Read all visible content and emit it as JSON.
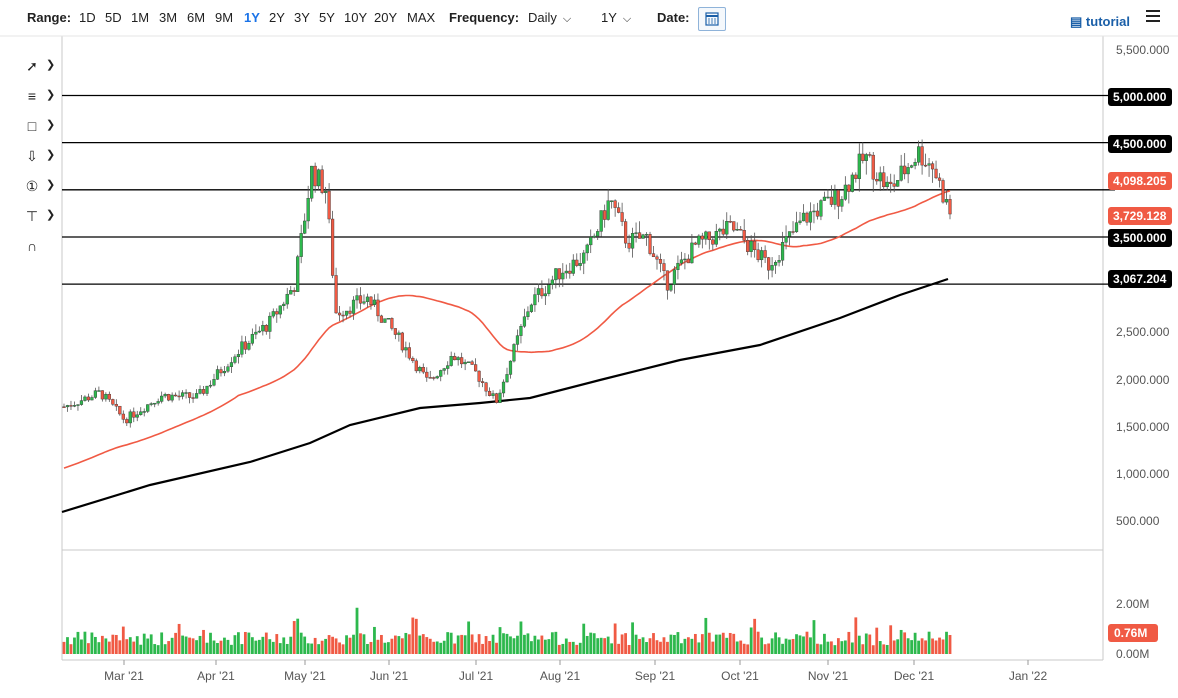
{
  "toolbar": {
    "range_label": "Range:",
    "ranges": [
      "1D",
      "5D",
      "1M",
      "3M",
      "6M",
      "9M",
      "1Y",
      "2Y",
      "3Y",
      "5Y",
      "10Y",
      "20Y",
      "MAX"
    ],
    "active_range": "1Y",
    "frequency_label": "Frequency:",
    "frequency_value": "Daily",
    "period_value": "1Y",
    "date_label": "Date:",
    "tutorial_label": "tutorial"
  },
  "drawing_tools": [
    {
      "icon": "trendline-icon"
    },
    {
      "icon": "fibonacci-icon"
    },
    {
      "icon": "rectangle-icon"
    },
    {
      "icon": "arrow-down-icon"
    },
    {
      "icon": "number-one-icon"
    },
    {
      "icon": "measure-icon"
    },
    {
      "icon": "magnet-icon"
    }
  ],
  "chart_data": {
    "type": "candlestick",
    "title": "",
    "x_tick_labels": [
      "Mar '21",
      "Apr '21",
      "May '21",
      "Jun '21",
      "Jul '21",
      "Aug '21",
      "Sep '21",
      "Oct '21",
      "Nov '21",
      "Dec '21",
      "Jan '22"
    ],
    "y_tick_labels": [
      "5,500.000",
      "5,000.000",
      "4,500.000",
      "2,500.000",
      "2,000.000",
      "1,500.000",
      "1,000.000",
      "500.000"
    ],
    "ylim": [
      0,
      5500
    ],
    "grid": false,
    "horizontal_levels": [
      5000,
      4500,
      4000,
      3500,
      3000
    ],
    "price_labels": [
      {
        "text": "5,000.000",
        "color": "#000000"
      },
      {
        "text": "4,500.000",
        "color": "#000000"
      },
      {
        "text": "4,098.205",
        "color": "#f05a44"
      },
      {
        "text": "3,729.128",
        "color": "#f05a44"
      },
      {
        "text": "3,500.000",
        "color": "#000000"
      },
      {
        "text": "3,067.204",
        "color": "#000000"
      }
    ],
    "ohlc_monthly_approx": [
      {
        "date": "Mar '21",
        "open": 1570,
        "high": 1950,
        "low": 1480,
        "close": 1800
      },
      {
        "date": "Apr '21",
        "open": 1800,
        "high": 2250,
        "low": 1600,
        "close": 2200
      },
      {
        "date": "May '21",
        "open": 2600,
        "high": 4350,
        "low": 2300,
        "close": 2700
      },
      {
        "date": "Jun '21",
        "open": 2700,
        "high": 2900,
        "low": 1800,
        "close": 2300
      },
      {
        "date": "Jul '21",
        "open": 2300,
        "high": 2400,
        "low": 1750,
        "close": 2400
      },
      {
        "date": "Aug '21",
        "open": 2400,
        "high": 3400,
        "low": 2400,
        "close": 3200
      },
      {
        "date": "Sep '21",
        "open": 3400,
        "high": 4000,
        "low": 2700,
        "close": 3000
      },
      {
        "date": "Oct '21",
        "open": 3000,
        "high": 4400,
        "low": 3000,
        "close": 4300
      },
      {
        "date": "Nov '21",
        "open": 4300,
        "high": 4850,
        "low": 3950,
        "close": 4650
      },
      {
        "date": "Dec '21",
        "open": 4650,
        "high": 4700,
        "low": 3650,
        "close": 3729
      }
    ],
    "ma50_last": 4098.205,
    "ma200_last": 3067.204,
    "volume": {
      "y_tick_labels": [
        "2.00M",
        "0.00M"
      ],
      "last_label": "0.76M",
      "last_value": 0.76,
      "up_color": "#2db84d",
      "down_color": "#f05a44"
    },
    "colors": {
      "up": "#2db84d",
      "down": "#f05a44",
      "ma50": "#f05a44",
      "ma200": "#000000"
    }
  }
}
